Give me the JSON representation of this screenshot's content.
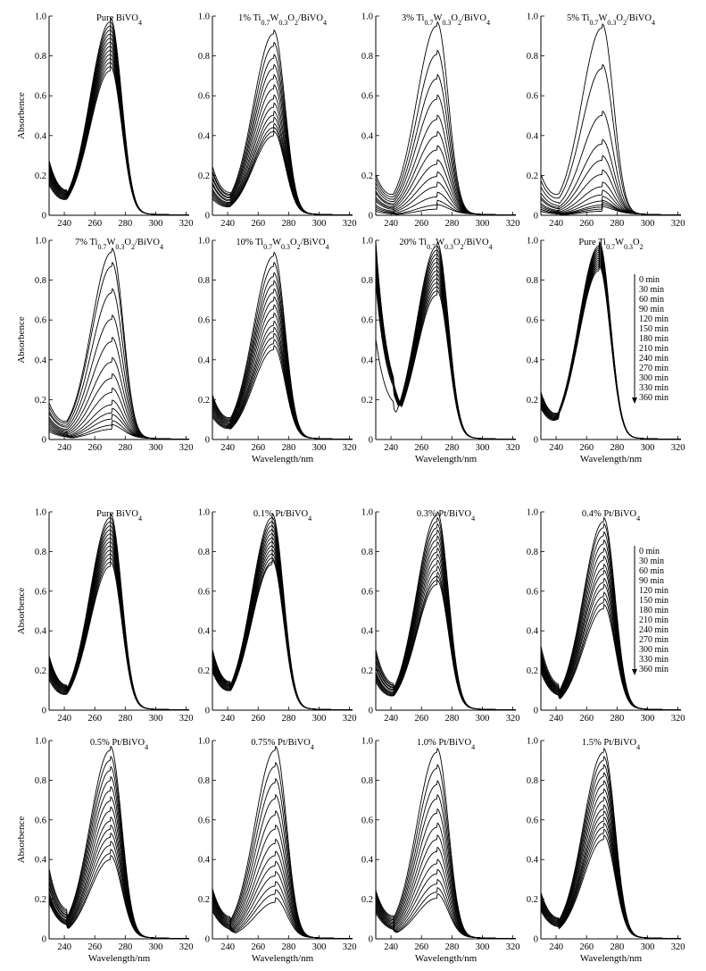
{
  "figure_parts": [
    {
      "name": "top",
      "row_titles": [
        [
          "Pure BiVO",
          "1% Ti",
          "3% Ti",
          "5% Ti"
        ],
        [
          "7% Ti",
          "10% Ti",
          "20% Ti",
          "Pure Ti"
        ]
      ]
    },
    {
      "name": "bottom",
      "row_titles": [
        [
          "Pure BiVO4",
          "0.1% Pt/BiVO4",
          "0.3% Pt/BiVO4",
          "0.4% Pt/BiVO4"
        ],
        [
          "0.5% Pt/BiVO4",
          "0.75% Pt/BiVO4",
          "1.0% Pt/BiVO4",
          "1.5% Pt/BiVO4"
        ]
      ]
    }
  ],
  "axis": {
    "xlabel": "Wavelength/nm",
    "ylabel": "Absorbence",
    "xlim": [
      230,
      322
    ],
    "ylim": [
      0,
      1.0
    ],
    "x_ticks": [
      "240",
      "260",
      "280",
      "300",
      "320"
    ],
    "y_ticks": [
      "0",
      "0.2",
      "0.4",
      "0.6",
      "0.8",
      "1.0"
    ]
  },
  "legend_times": [
    "0 min",
    "30 min",
    "60 min",
    "90 min",
    "120 min",
    "150 min",
    "180 min",
    "210 min",
    "240 min",
    "270 min",
    "300 min",
    "330 min",
    "360 min"
  ],
  "chart_data": [
    {
      "type": "line",
      "group": "top",
      "title": "Pure BiVO4",
      "title_parts": [
        [
          "Pure BiVO",
          ""
        ],
        [
          "4",
          "sub"
        ]
      ],
      "xlabel": "",
      "ylabel": "Absorbence",
      "xlim": [
        230,
        322
      ],
      "ylim": [
        0,
        1.0
      ],
      "peak_nm": 270,
      "peak_values": [
        0.95,
        0.93,
        0.91,
        0.89,
        0.87,
        0.85,
        0.83,
        0.81,
        0.79,
        0.77,
        0.75,
        0.73,
        0.71
      ],
      "value_at_230nm": [
        0.27,
        0.26,
        0.25,
        0.24,
        0.23,
        0.22,
        0.21,
        0.2,
        0.19,
        0.18,
        0.17,
        0.16,
        0.15
      ]
    },
    {
      "type": "line",
      "group": "top",
      "title": "1% Ti0.7W0.3O2/BiVO4",
      "title_parts": [
        [
          "1% Ti",
          ""
        ],
        [
          "0.7",
          "sub"
        ],
        [
          "W",
          ""
        ],
        [
          "0.3",
          "sub"
        ],
        [
          "O",
          ""
        ],
        [
          "2",
          "sub"
        ],
        [
          "/BiVO",
          ""
        ],
        [
          "4",
          "sub"
        ]
      ],
      "xlabel": "",
      "ylabel": "",
      "xlim": [
        230,
        322
      ],
      "ylim": [
        0,
        1.0
      ],
      "peak_nm": 270,
      "peak_values": [
        0.89,
        0.83,
        0.77,
        0.72,
        0.67,
        0.62,
        0.57,
        0.53,
        0.49,
        0.46,
        0.43,
        0.41,
        0.39
      ],
      "value_at_230nm": [
        0.24,
        0.22,
        0.21,
        0.19,
        0.18,
        0.16,
        0.15,
        0.13,
        0.12,
        0.11,
        0.1,
        0.09,
        0.08
      ]
    },
    {
      "type": "line",
      "group": "top",
      "title": "3% Ti0.7W0.3O2/BiVO4",
      "title_parts": [
        [
          "3% Ti",
          ""
        ],
        [
          "0.7",
          "sub"
        ],
        [
          "W",
          ""
        ],
        [
          "0.3",
          "sub"
        ],
        [
          "O",
          ""
        ],
        [
          "2",
          "sub"
        ],
        [
          "/BiVO",
          ""
        ],
        [
          "4",
          "sub"
        ]
      ],
      "xlabel": "",
      "ylabel": "",
      "xlim": [
        230,
        322
      ],
      "ylim": [
        0,
        1.0
      ],
      "peak_nm": 270,
      "peak_values": [
        0.93,
        0.79,
        0.67,
        0.57,
        0.47,
        0.39,
        0.32,
        0.25,
        0.19,
        0.14,
        0.09,
        0.05,
        0.03
      ],
      "value_at_230nm": [
        0.2,
        0.18,
        0.16,
        0.14,
        0.12,
        0.11,
        0.09,
        0.08,
        0.07,
        0.05,
        0.04,
        0.03,
        0.02
      ]
    },
    {
      "type": "line",
      "group": "top",
      "title": "5% Ti0.7W0.3O2/BiVO4",
      "title_parts": [
        [
          "5% Ti",
          ""
        ],
        [
          "0.7",
          "sub"
        ],
        [
          "W",
          ""
        ],
        [
          "0.3",
          "sub"
        ],
        [
          "O",
          ""
        ],
        [
          "2",
          "sub"
        ],
        [
          "/BiVO",
          ""
        ],
        [
          "4",
          "sub"
        ]
      ],
      "xlabel": "",
      "ylabel": "",
      "xlim": [
        230,
        322
      ],
      "ylim": [
        0,
        1.0
      ],
      "peak_nm": 270,
      "peak_values": [
        0.92,
        0.72,
        0.49,
        0.35,
        0.27,
        0.2,
        0.14,
        0.1,
        0.07,
        0.05,
        0.04,
        0.03,
        0.02
      ],
      "value_at_230nm": [
        0.2,
        0.17,
        0.14,
        0.11,
        0.09,
        0.08,
        0.06,
        0.05,
        0.04,
        0.03,
        0.03,
        0.02,
        0.02
      ]
    },
    {
      "type": "line",
      "group": "top",
      "title": "7% Ti0.7W0.3O2/BiVO4",
      "title_parts": [
        [
          "7% Ti",
          ""
        ],
        [
          "0.7",
          "sub"
        ],
        [
          "W",
          ""
        ],
        [
          "0.3",
          "sub"
        ],
        [
          "O",
          ""
        ],
        [
          "2",
          "sub"
        ],
        [
          "/BiVO",
          ""
        ],
        [
          "4",
          "sub"
        ]
      ],
      "xlabel": "",
      "ylabel": "Absorbence",
      "xlim": [
        230,
        322
      ],
      "ylim": [
        0,
        1.0
      ],
      "peak_nm": 271,
      "peak_values": [
        0.92,
        0.85,
        0.72,
        0.59,
        0.48,
        0.38,
        0.3,
        0.23,
        0.17,
        0.13,
        0.1,
        0.07,
        0.05
      ],
      "value_at_230nm": [
        0.18,
        0.16,
        0.14,
        0.13,
        0.11,
        0.1,
        0.09,
        0.08,
        0.07,
        0.06,
        0.05,
        0.05,
        0.04
      ]
    },
    {
      "type": "line",
      "group": "top",
      "title": "10% Ti0.7W0.3O2/BiVO4",
      "title_parts": [
        [
          "10% Ti",
          ""
        ],
        [
          "0.7",
          "sub"
        ],
        [
          "W",
          ""
        ],
        [
          "0.3",
          "sub"
        ],
        [
          "O",
          ""
        ],
        [
          "2",
          "sub"
        ],
        [
          "/BiVO",
          ""
        ],
        [
          "4",
          "sub"
        ]
      ],
      "xlabel": "Wavelength/nm",
      "ylabel": "",
      "xlim": [
        230,
        322
      ],
      "ylim": [
        0,
        1.0
      ],
      "peak_nm": 270,
      "peak_values": [
        0.9,
        0.85,
        0.8,
        0.76,
        0.72,
        0.68,
        0.64,
        0.6,
        0.56,
        0.53,
        0.5,
        0.47,
        0.44
      ],
      "value_at_230nm": [
        0.22,
        0.21,
        0.2,
        0.19,
        0.18,
        0.17,
        0.16,
        0.15,
        0.14,
        0.13,
        0.12,
        0.12,
        0.11
      ]
    },
    {
      "type": "line",
      "group": "top",
      "title": "20% Ti0.7W0.3O2/BiVO4",
      "title_parts": [
        [
          "20% Ti",
          ""
        ],
        [
          "0.7",
          "sub"
        ],
        [
          "W",
          ""
        ],
        [
          "0.3",
          "sub"
        ],
        [
          "O",
          ""
        ],
        [
          "2",
          "sub"
        ],
        [
          "/BiVO",
          ""
        ],
        [
          "4",
          "sub"
        ]
      ],
      "xlabel": "Wavelength/nm",
      "ylabel": "",
      "xlim": [
        230,
        322
      ],
      "ylim": [
        0,
        1.0
      ],
      "peak_nm": 270,
      "peak_values": [
        0.95,
        0.93,
        0.91,
        0.89,
        0.87,
        0.85,
        0.83,
        0.81,
        0.79,
        0.77,
        0.75,
        0.73,
        0.71
      ],
      "value_at_230nm": [
        0.5,
        0.78,
        0.82,
        0.86,
        0.88,
        0.9,
        0.92,
        0.94,
        0.95,
        0.96,
        0.97,
        0.98,
        0.99
      ]
    },
    {
      "type": "line",
      "group": "top",
      "title": "Pure Ti0.7W0.3O2",
      "title_parts": [
        [
          "Pure Ti",
          ""
        ],
        [
          "0.7",
          "sub"
        ],
        [
          "W",
          ""
        ],
        [
          "0.3",
          "sub"
        ],
        [
          "O",
          ""
        ],
        [
          "2",
          "sub"
        ]
      ],
      "xlabel": "Wavelength/nm",
      "ylabel": "",
      "xlim": [
        230,
        322
      ],
      "ylim": [
        0,
        1.0
      ],
      "peak_nm": 268,
      "peak_values": [
        0.95,
        0.94,
        0.93,
        0.92,
        0.91,
        0.9,
        0.89,
        0.88,
        0.87,
        0.86,
        0.85,
        0.84,
        0.83
      ],
      "value_at_230nm": [
        0.23,
        0.22,
        0.21,
        0.2,
        0.19,
        0.19,
        0.18,
        0.18,
        0.17,
        0.17,
        0.16,
        0.16,
        0.15
      ]
    },
    {
      "type": "line",
      "group": "bottom",
      "title": "Pure BiVO4",
      "title_parts": [
        [
          "Pure BiVO",
          ""
        ],
        [
          "4",
          "sub"
        ]
      ],
      "xlabel": "",
      "ylabel": "Absorbence",
      "xlim": [
        230,
        322
      ],
      "ylim": [
        0,
        1.0
      ],
      "peak_nm": 270,
      "peak_values": [
        0.95,
        0.93,
        0.91,
        0.89,
        0.87,
        0.85,
        0.83,
        0.81,
        0.79,
        0.77,
        0.75,
        0.73,
        0.71
      ],
      "value_at_230nm": [
        0.27,
        0.26,
        0.25,
        0.24,
        0.23,
        0.22,
        0.21,
        0.2,
        0.19,
        0.18,
        0.17,
        0.16,
        0.15
      ]
    },
    {
      "type": "line",
      "group": "bottom",
      "title": "0.1% Pt/BiVO4",
      "title_parts": [
        [
          "0.1% Pt/BiVO",
          ""
        ],
        [
          "4",
          "sub"
        ]
      ],
      "xlabel": "",
      "ylabel": "",
      "xlim": [
        230,
        322
      ],
      "ylim": [
        0,
        1.0
      ],
      "peak_nm": 269,
      "peak_values": [
        0.95,
        0.93,
        0.91,
        0.89,
        0.87,
        0.85,
        0.83,
        0.81,
        0.79,
        0.77,
        0.75,
        0.73,
        0.72
      ],
      "value_at_230nm": [
        0.3,
        0.29,
        0.28,
        0.27,
        0.26,
        0.25,
        0.24,
        0.23,
        0.22,
        0.21,
        0.2,
        0.2,
        0.19
      ]
    },
    {
      "type": "line",
      "group": "bottom",
      "title": "0.3% Pt/BiVO4",
      "title_parts": [
        [
          "0.3% Pt/BiVO",
          ""
        ],
        [
          "4",
          "sub"
        ]
      ],
      "xlabel": "",
      "ylabel": "",
      "xlim": [
        230,
        322
      ],
      "ylim": [
        0,
        1.0
      ],
      "peak_nm": 270,
      "peak_values": [
        0.96,
        0.93,
        0.9,
        0.87,
        0.84,
        0.81,
        0.78,
        0.75,
        0.72,
        0.69,
        0.66,
        0.64,
        0.62
      ],
      "value_at_230nm": [
        0.3,
        0.28,
        0.27,
        0.25,
        0.24,
        0.22,
        0.21,
        0.19,
        0.18,
        0.17,
        0.16,
        0.15,
        0.14
      ]
    },
    {
      "type": "line",
      "group": "bottom",
      "title": "0.4% Pt/BiVO4",
      "title_parts": [
        [
          "0.4% Pt/BiVO",
          ""
        ],
        [
          "4",
          "sub"
        ]
      ],
      "xlabel": "",
      "ylabel": "",
      "xlim": [
        230,
        322
      ],
      "ylim": [
        0,
        1.0
      ],
      "peak_nm": 271,
      "peak_values": [
        0.93,
        0.9,
        0.86,
        0.82,
        0.78,
        0.74,
        0.7,
        0.67,
        0.63,
        0.6,
        0.56,
        0.53,
        0.5
      ],
      "value_at_230nm": [
        0.32,
        0.3,
        0.29,
        0.28,
        0.27,
        0.26,
        0.25,
        0.24,
        0.23,
        0.22,
        0.21,
        0.2,
        0.19
      ]
    },
    {
      "type": "line",
      "group": "bottom",
      "title": "0.5% Pt/BiVO4",
      "title_parts": [
        [
          "0.5% Pt/BiVO",
          ""
        ],
        [
          "4",
          "sub"
        ]
      ],
      "xlabel": "Wavelength/nm",
      "ylabel": "Absorbence",
      "xlim": [
        230,
        322
      ],
      "ylim": [
        0,
        1.0
      ],
      "peak_nm": 270,
      "peak_values": [
        0.93,
        0.88,
        0.83,
        0.78,
        0.73,
        0.68,
        0.63,
        0.58,
        0.54,
        0.5,
        0.46,
        0.42,
        0.39
      ],
      "value_at_230nm": [
        0.35,
        0.33,
        0.31,
        0.29,
        0.28,
        0.26,
        0.25,
        0.23,
        0.22,
        0.21,
        0.2,
        0.19,
        0.18
      ]
    },
    {
      "type": "line",
      "group": "bottom",
      "title": "0.75% Pt/BiVO4",
      "title_parts": [
        [
          "0.75% Pt/BiVO",
          ""
        ],
        [
          "4",
          "sub"
        ]
      ],
      "xlabel": "Wavelength/nm",
      "ylabel": "",
      "xlim": [
        230,
        322
      ],
      "ylim": [
        0,
        1.0
      ],
      "peak_nm": 271,
      "peak_values": [
        0.93,
        0.85,
        0.77,
        0.69,
        0.61,
        0.54,
        0.47,
        0.41,
        0.36,
        0.31,
        0.26,
        0.22,
        0.18
      ],
      "value_at_230nm": [
        0.25,
        0.24,
        0.23,
        0.22,
        0.21,
        0.2,
        0.19,
        0.18,
        0.17,
        0.16,
        0.15,
        0.14,
        0.14
      ]
    },
    {
      "type": "line",
      "group": "bottom",
      "title": "1.0% Pt/BiVO4",
      "title_parts": [
        [
          "1.0% Pt/BiVO",
          ""
        ],
        [
          "4",
          "sub"
        ]
      ],
      "xlabel": "Wavelength/nm",
      "ylabel": "",
      "xlim": [
        230,
        322
      ],
      "ylim": [
        0,
        1.0
      ],
      "peak_nm": 270,
      "peak_values": [
        0.92,
        0.84,
        0.76,
        0.69,
        0.62,
        0.55,
        0.49,
        0.43,
        0.37,
        0.32,
        0.27,
        0.23,
        0.2
      ],
      "value_at_230nm": [
        0.24,
        0.23,
        0.22,
        0.21,
        0.2,
        0.19,
        0.18,
        0.17,
        0.16,
        0.15,
        0.15,
        0.14,
        0.13
      ]
    },
    {
      "type": "line",
      "group": "bottom",
      "title": "1.5% Pt/BiVO4",
      "title_parts": [
        [
          "1.5% Pt/BiVO",
          ""
        ],
        [
          "4",
          "sub"
        ]
      ],
      "xlabel": "Wavelength/nm",
      "ylabel": "",
      "xlim": [
        230,
        322
      ],
      "ylim": [
        0,
        1.0
      ],
      "peak_nm": 271,
      "peak_values": [
        0.92,
        0.88,
        0.84,
        0.8,
        0.76,
        0.72,
        0.68,
        0.64,
        0.61,
        0.58,
        0.55,
        0.52,
        0.49
      ],
      "value_at_230nm": [
        0.23,
        0.22,
        0.21,
        0.2,
        0.19,
        0.18,
        0.18,
        0.17,
        0.16,
        0.16,
        0.15,
        0.15,
        0.14
      ]
    }
  ]
}
